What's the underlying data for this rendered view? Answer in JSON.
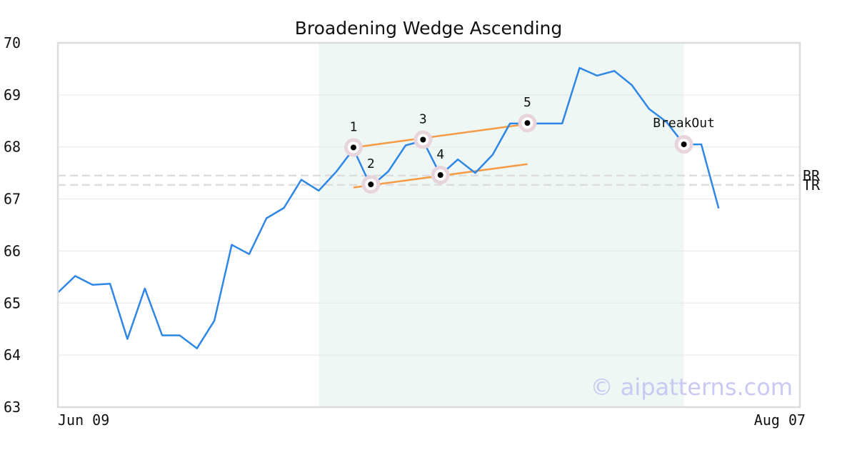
{
  "chart_data": {
    "type": "line",
    "title": "Broadening Wedge Ascending",
    "ylim": [
      63,
      70
    ],
    "yticks": [
      "63",
      "64",
      "65",
      "66",
      "67",
      "68",
      "69",
      "70"
    ],
    "xtick_labels": [
      {
        "index": 0,
        "label": "Jun 09"
      },
      {
        "index": 43,
        "label": "Aug 07"
      }
    ],
    "grid": true,
    "series": [
      {
        "values": [
          65.2,
          65.52,
          65.35,
          65.37,
          64.31,
          65.28,
          64.38,
          64.38,
          64.13,
          64.66,
          66.12,
          65.94,
          66.63,
          66.83,
          67.37,
          67.16,
          67.52,
          67.96,
          67.24,
          67.53,
          68.03,
          68.12,
          67.46,
          67.76,
          67.5,
          67.85,
          68.45,
          68.45,
          68.45,
          68.45,
          69.52,
          69.37,
          69.46,
          69.19,
          68.73,
          68.48,
          68.05,
          68.05,
          66.82
        ],
        "color": "#2e86e6"
      }
    ],
    "highlight_band": {
      "start_index": 15,
      "end_index": 36,
      "color": "#eff7f4"
    },
    "trend_lines": [
      {
        "x1": 17,
        "y1": 67.99,
        "x2": 27,
        "y2": 68.44,
        "color": "#f59a45"
      },
      {
        "x1": 17,
        "y1": 67.22,
        "x2": 27,
        "y2": 67.67,
        "color": "#f59a45"
      }
    ],
    "points": [
      {
        "label": "1",
        "index": 17,
        "value": 67.99
      },
      {
        "label": "2",
        "index": 18,
        "value": 67.28
      },
      {
        "label": "3",
        "index": 21,
        "value": 68.14
      },
      {
        "label": "4",
        "index": 22,
        "value": 67.46
      },
      {
        "label": "5",
        "index": 27,
        "value": 68.46
      },
      {
        "label": "BreakOut",
        "index": 36,
        "value": 68.05
      }
    ],
    "ref_lines": [
      {
        "label": "BR",
        "value": 67.45
      },
      {
        "label": "TR",
        "value": 67.27
      }
    ],
    "watermark": "© aipatterns.com"
  }
}
